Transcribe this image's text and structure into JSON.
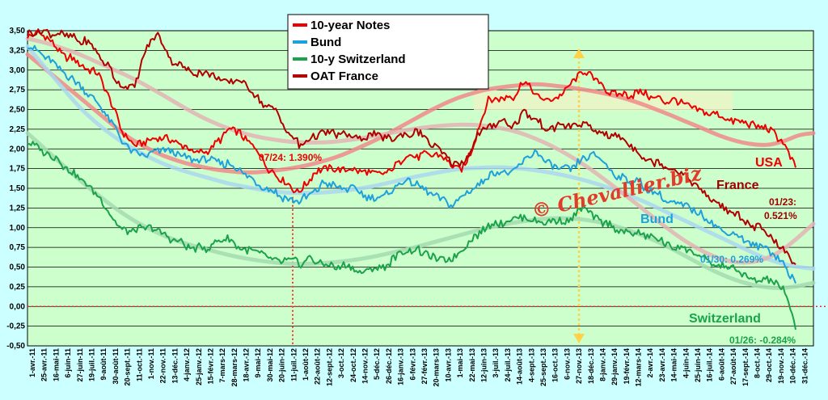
{
  "chart_data": {
    "type": "line",
    "title": "",
    "xlabel": "",
    "ylabel": "",
    "ylim": [
      -0.5,
      3.5
    ],
    "y_ticks": [
      "3,50",
      "3,25",
      "3,00",
      "2,75",
      "2,50",
      "2,25",
      "2,00",
      "1,75",
      "1,50",
      "1,25",
      "1,00",
      "0,75",
      "0,50",
      "0,25",
      "0,00",
      "-0,25",
      "-0,50"
    ],
    "x_ticks": [
      "1-avr.-11",
      "25-avr.-11",
      "16-mai-11",
      "6-juin-11",
      "27-juin-11",
      "19-juil.-11",
      "9-août-11",
      "30-août-11",
      "20-sept.-11",
      "11-oct.-11",
      "1-nov.-11",
      "22-nov.-11",
      "13-déc.-11",
      "4-janv.-12",
      "25-janv.-12",
      "15-févr.-12",
      "7-mars-12",
      "28-mars-12",
      "18-avr.-12",
      "9-mai-12",
      "30-mai-12",
      "20-juin-12",
      "11-juil.-12",
      "1-août-12",
      "22-août-12",
      "12-sept.-12",
      "3-oct.-12",
      "24-oct.-12",
      "14-nov.-12",
      "5-déc.-12",
      "26-déc.-12",
      "16-janv.-13",
      "6-févr.-13",
      "27-févr.-13",
      "20-mars-13",
      "10-avr.-13",
      "1-mai-13",
      "22-mai-13",
      "12-juin-13",
      "3-juil.-13",
      "24-juil.-13",
      "14-août-13",
      "4-sept.-13",
      "25-sept.-13",
      "16-oct.-13",
      "6-nov.-13",
      "27-nov.-13",
      "18-déc.-13",
      "8-janv.-14",
      "29-janv.-14",
      "19-févr.-14",
      "12-mars-14",
      "2-avr.-14",
      "23-avr.-14",
      "14-mai-14",
      "4-juin-14",
      "25-juin-14",
      "16-juil.-14",
      "6-août-14",
      "27-août-14",
      "17-sept.-14",
      "8-oct.-14",
      "29-oct.-14",
      "19-nov.-14",
      "10-déc.-14",
      "31-déc.-14"
    ],
    "grid": true,
    "legend_position": "top-center",
    "watermark": "© Chevallier.biz",
    "series": [
      {
        "name": "10-year Notes",
        "color": "#ee0000",
        "trend_color": "#f08a8a",
        "values": [
          3.45,
          3.45,
          3.4,
          3.2,
          3.1,
          3.05,
          2.95,
          2.6,
          2.25,
          2.05,
          2.1,
          2.15,
          2.1,
          2.05,
          1.95,
          1.95,
          2.05,
          2.25,
          2.2,
          2.05,
          1.85,
          1.65,
          1.55,
          1.45,
          1.65,
          1.75,
          1.75,
          1.75,
          1.7,
          1.7,
          1.7,
          1.75,
          1.95,
          1.9,
          1.95,
          1.9,
          1.75,
          1.75,
          2.2,
          2.6,
          2.65,
          2.65,
          2.85,
          2.7,
          2.6,
          2.65,
          2.85,
          3.0,
          2.9,
          2.75,
          2.7,
          2.7,
          2.7,
          2.65,
          2.6,
          2.6,
          2.55,
          2.5,
          2.45,
          2.4,
          2.35,
          2.3,
          2.3,
          2.2,
          2.1,
          1.75
        ],
        "trend": [
          3.2,
          3.05,
          2.9,
          2.75,
          2.6,
          2.45,
          2.3,
          2.15,
          2.05,
          1.95,
          1.88,
          1.82,
          1.78,
          1.74,
          1.72,
          1.7,
          1.7,
          1.72,
          1.74,
          1.77,
          1.81,
          1.86,
          1.92,
          2.0,
          2.08,
          2.17,
          2.27,
          2.37,
          2.47,
          2.56,
          2.64,
          2.7,
          2.75,
          2.78,
          2.8,
          2.82,
          2.82,
          2.8,
          2.78,
          2.75,
          2.72,
          2.68,
          2.63,
          2.57,
          2.5,
          2.43,
          2.35,
          2.28,
          2.2,
          2.13,
          2.08,
          2.05,
          2.05,
          2.1,
          2.18,
          2.2
        ]
      },
      {
        "name": "Bund",
        "color": "#1ea0dc",
        "trend_color": "#a9d8ee",
        "values": [
          3.35,
          3.25,
          3.1,
          3.0,
          2.85,
          2.7,
          2.55,
          2.35,
          2.1,
          1.95,
          1.9,
          2.0,
          1.95,
          1.9,
          1.85,
          1.85,
          1.85,
          1.8,
          1.7,
          1.6,
          1.5,
          1.45,
          1.35,
          1.3,
          1.45,
          1.55,
          1.55,
          1.5,
          1.45,
          1.4,
          1.35,
          1.5,
          1.6,
          1.55,
          1.45,
          1.35,
          1.3,
          1.45,
          1.55,
          1.65,
          1.7,
          1.65,
          1.85,
          1.95,
          1.85,
          1.75,
          1.75,
          1.85,
          1.9,
          1.8,
          1.65,
          1.6,
          1.55,
          1.45,
          1.35,
          1.3,
          1.25,
          1.2,
          1.05,
          0.95,
          0.9,
          0.8,
          0.75,
          0.7,
          0.55,
          0.27
        ],
        "trend": [
          3.3,
          3.05,
          2.8,
          2.55,
          2.35,
          2.18,
          2.04,
          1.92,
          1.82,
          1.74,
          1.68,
          1.62,
          1.56,
          1.52,
          1.48,
          1.45,
          1.44,
          1.44,
          1.45,
          1.47,
          1.5,
          1.54,
          1.59,
          1.64,
          1.68,
          1.72,
          1.75,
          1.76,
          1.77,
          1.76,
          1.74,
          1.71,
          1.67,
          1.62,
          1.56,
          1.49,
          1.41,
          1.32,
          1.22,
          1.12,
          1.02,
          0.92,
          0.82,
          0.72,
          0.62,
          0.55,
          0.5,
          0.48
        ]
      },
      {
        "name": "10-y Switzerland",
        "color": "#1aa34a",
        "trend_color": "#a3dcaf",
        "values": [
          2.05,
          2.0,
          1.95,
          1.8,
          1.7,
          1.55,
          1.4,
          1.15,
          0.95,
          0.95,
          1.0,
          0.95,
          0.85,
          0.8,
          0.75,
          0.75,
          0.8,
          0.85,
          0.75,
          0.7,
          0.65,
          0.6,
          0.55,
          0.55,
          0.6,
          0.55,
          0.5,
          0.5,
          0.45,
          0.45,
          0.5,
          0.6,
          0.7,
          0.7,
          0.65,
          0.6,
          0.6,
          0.75,
          0.9,
          1.05,
          1.05,
          1.1,
          1.15,
          1.1,
          1.05,
          1.1,
          1.1,
          1.25,
          1.15,
          1.05,
          1.0,
          0.95,
          0.9,
          0.85,
          0.8,
          0.75,
          0.7,
          0.6,
          0.55,
          0.5,
          0.45,
          0.35,
          0.35,
          0.3,
          0.2,
          -0.28
        ],
        "trend": [
          2.2,
          2.0,
          1.8,
          1.6,
          1.42,
          1.25,
          1.1,
          0.98,
          0.88,
          0.8,
          0.74,
          0.68,
          0.63,
          0.59,
          0.56,
          0.54,
          0.54,
          0.55,
          0.57,
          0.6,
          0.64,
          0.69,
          0.74,
          0.8,
          0.86,
          0.92,
          0.98,
          1.03,
          1.07,
          1.1,
          1.12,
          1.12,
          1.1,
          1.06,
          1.0,
          0.92,
          0.83,
          0.72,
          0.6,
          0.48,
          0.38,
          0.3,
          0.25,
          0.23,
          0.25,
          0.3
        ]
      },
      {
        "name": "OAT France",
        "color": "#b00000",
        "trend_color": "#e2b4b4",
        "values": [
          3.5,
          3.5,
          3.45,
          3.45,
          3.4,
          3.35,
          3.2,
          3.0,
          2.8,
          2.75,
          3.25,
          3.45,
          3.15,
          3.05,
          3.0,
          2.95,
          2.9,
          2.85,
          2.9,
          2.75,
          2.55,
          2.5,
          2.2,
          2.05,
          2.15,
          2.2,
          2.2,
          2.2,
          2.15,
          2.2,
          2.15,
          2.1,
          2.2,
          2.2,
          2.1,
          1.95,
          1.8,
          1.85,
          2.15,
          2.3,
          2.35,
          2.3,
          2.45,
          2.35,
          2.25,
          2.3,
          2.3,
          2.35,
          2.25,
          2.2,
          2.15,
          2.05,
          1.9,
          1.85,
          1.75,
          1.7,
          1.6,
          1.5,
          1.35,
          1.25,
          1.15,
          1.05,
          1.0,
          0.85,
          0.7,
          0.52
        ],
        "trend": [
          3.4,
          3.35,
          3.28,
          3.2,
          3.1,
          3.0,
          2.9,
          2.78,
          2.65,
          2.52,
          2.4,
          2.3,
          2.22,
          2.16,
          2.12,
          2.09,
          2.08,
          2.08,
          2.1,
          2.13,
          2.17,
          2.21,
          2.25,
          2.28,
          2.3,
          2.31,
          2.3,
          2.27,
          2.22,
          2.14,
          2.04,
          1.92,
          1.78,
          1.62,
          1.45,
          1.28,
          1.1,
          0.93,
          0.78,
          0.66,
          0.58,
          0.55,
          0.58,
          0.68,
          0.85,
          1.05
        ]
      }
    ],
    "annotations": {
      "usa_label": "USA",
      "france_label": "France",
      "bund_label": "Bund",
      "switzerland_label": "Switzerland",
      "us_low": "07/24: 1.390%",
      "france_last_date": "01/23:",
      "france_last_value": "0.521%",
      "bund_last": "01/30: 0.269%",
      "swiss_last": "01/26: -0.284%"
    }
  }
}
